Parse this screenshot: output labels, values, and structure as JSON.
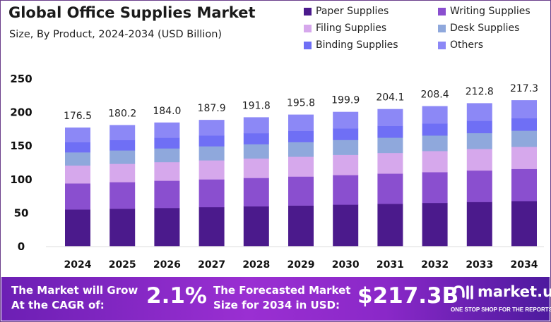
{
  "title": "Global Office Supplies Market",
  "subtitle": "Size, By Product, 2024-2034 (USD Billion)",
  "chart_data": {
    "type": "bar",
    "stacked": true,
    "categories": [
      "2024",
      "2025",
      "2026",
      "2027",
      "2028",
      "2029",
      "2030",
      "2031",
      "2032",
      "2033",
      "2034"
    ],
    "totals": [
      176.5,
      180.2,
      184.0,
      187.9,
      191.8,
      195.8,
      199.9,
      204.1,
      208.4,
      212.8,
      217.3
    ],
    "total_labels": [
      "176.5",
      "180.2",
      "184.0",
      "187.9",
      "191.8",
      "195.8",
      "199.9",
      "204.1",
      "208.4",
      "212.8",
      "217.3"
    ],
    "series": [
      {
        "name": "Paper Supplies",
        "color": "#4b1a8c",
        "values": [
          54.4,
          55.5,
          56.7,
          57.9,
          59.1,
          60.3,
          61.6,
          62.9,
          64.2,
          65.6,
          67.0
        ]
      },
      {
        "name": "Writing Supplies",
        "color": "#8a4fcf",
        "values": [
          38.9,
          39.7,
          40.6,
          41.4,
          42.3,
          43.2,
          44.1,
          45.0,
          45.9,
          46.9,
          47.9
        ]
      },
      {
        "name": "Filing Supplies",
        "color": "#d6a8ec",
        "values": [
          26.7,
          27.3,
          27.8,
          28.4,
          29.0,
          29.6,
          30.2,
          30.9,
          31.5,
          32.2,
          32.9
        ]
      },
      {
        "name": "Desk Supplies",
        "color": "#8fa8dc",
        "values": [
          19.6,
          20.0,
          20.4,
          20.9,
          21.3,
          21.7,
          22.2,
          22.7,
          23.1,
          23.6,
          24.1
        ]
      },
      {
        "name": "Binding Supplies",
        "color": "#6f6ff5",
        "values": [
          15.1,
          15.4,
          15.8,
          16.1,
          16.4,
          16.8,
          17.1,
          17.5,
          17.8,
          18.2,
          18.6
        ]
      },
      {
        "name": "Others",
        "color": "#8c88f6",
        "values": [
          21.8,
          22.3,
          22.7,
          23.2,
          23.7,
          24.2,
          24.7,
          25.1,
          25.9,
          26.3,
          26.8
        ]
      }
    ],
    "yticks": [
      "0",
      "50",
      "100",
      "150",
      "200",
      "250"
    ],
    "ylim": [
      0,
      250
    ],
    "grid": false,
    "legend": "top-right"
  },
  "footer": {
    "cagr_label_1": "The Market will Grow",
    "cagr_label_2": "At the CAGR of:",
    "cagr_value": "2.1%",
    "forecast_label_1": "The Forecasted Market",
    "forecast_label_2": "Size for 2034 in USD:",
    "forecast_value": "$217.3B",
    "logo_text": "market.us",
    "logo_tagline": "ONE STOP SHOP FOR THE REPORTS"
  }
}
